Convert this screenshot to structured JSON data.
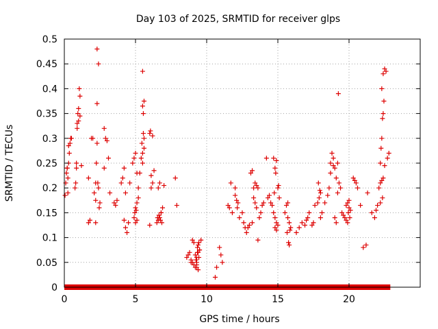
{
  "chart_data": {
    "type": "scatter",
    "title": "Day 103 of 2025, SRMTID for receiver glps",
    "xlabel": "GPS time / hours",
    "ylabel": "SRMTID / TECUs",
    "xlim": [
      0,
      25
    ],
    "ylim": [
      0,
      0.5
    ],
    "xticks": [
      0,
      5,
      10,
      15,
      20
    ],
    "xtick_labels": [
      "0",
      "5",
      "10",
      "15",
      "20"
    ],
    "yticks": [
      0,
      0.05,
      0.1,
      0.15,
      0.2,
      0.25,
      0.3,
      0.35,
      0.4,
      0.45,
      0.5
    ],
    "ytick_labels": [
      "0",
      "0.05",
      "0.1",
      "0.15",
      "0.2",
      "0.25",
      "0.3",
      "0.35",
      "0.4",
      "0.45",
      "0.5"
    ],
    "grid": true,
    "marker": "plus",
    "color": "#dd0000",
    "zero_band": {
      "x_start": 0,
      "x_end": 22.9,
      "y": 0
    },
    "series": [
      {
        "name": "SRMTID",
        "x": [
          0.05,
          0.1,
          0.15,
          0.2,
          0.25,
          0.3,
          0.35,
          0.4,
          0.45,
          0.5,
          0.2,
          0.3,
          0.25,
          0.75,
          0.8,
          0.85,
          0.9,
          0.95,
          1.0,
          1.05,
          1.1,
          1.2,
          0.9,
          1.0,
          1.1,
          0.85,
          1.7,
          1.8,
          1.7,
          1.9,
          2.0,
          2.1,
          2.2,
          2.3,
          2.4,
          2.3,
          2.2,
          2.25,
          2.3,
          2.2,
          2.35,
          2.4,
          2.5,
          2.45,
          2.8,
          2.9,
          3.0,
          3.1,
          2.8,
          3.2,
          3.5,
          3.6,
          3.7,
          4.0,
          4.1,
          4.2,
          4.3,
          4.4,
          4.5,
          4.2,
          4.3,
          4.6,
          4.8,
          4.9,
          5.0,
          5.1,
          5.2,
          5.0,
          5.1,
          5.2,
          4.9,
          5.0,
          5.1,
          5.3,
          4.95,
          5.05,
          5.4,
          5.5,
          5.45,
          5.6,
          5.55,
          5.5,
          5.6,
          5.5,
          5.6,
          5.55,
          5.5,
          6.0,
          6.1,
          6.2,
          6.3,
          6.1,
          6.0,
          6.2,
          6.05,
          6.5,
          6.6,
          6.7,
          6.8,
          6.9,
          7.0,
          6.6,
          6.7,
          6.8,
          6.55,
          6.65,
          6.75,
          6.85,
          7.8,
          7.9,
          8.6,
          8.7,
          8.8,
          8.9,
          9.0,
          9.1,
          9.2,
          9.3,
          9.4,
          9.5,
          9.35,
          9.4,
          9.45,
          9.3,
          9.25,
          9.2,
          9.4,
          9.3,
          9.5,
          9.6,
          9.1,
          9.0,
          8.9,
          9.3,
          9.45,
          9.35,
          10.6,
          10.7,
          10.9,
          11.0,
          11.1,
          11.5,
          11.6,
          11.7,
          12.0,
          12.1,
          12.2,
          12.15,
          12.3,
          12.0,
          11.8,
          12.5,
          12.6,
          12.7,
          12.8,
          12.9,
          13.0,
          13.1,
          13.2,
          13.3,
          13.4,
          13.5,
          13.6,
          13.3,
          13.4,
          13.5,
          13.6,
          13.2,
          13.7,
          13.8,
          13.9,
          14.0,
          14.2,
          14.3,
          14.4,
          14.5,
          14.6,
          14.7,
          14.8,
          14.9,
          15.0,
          14.8,
          14.9,
          14.7,
          14.85,
          14.75,
          15.1,
          15.0,
          15.05,
          14.8,
          14.9,
          15.5,
          15.6,
          15.7,
          15.8,
          15.9,
          15.7,
          15.8,
          15.75,
          15.65,
          15.85,
          16.3,
          16.5,
          16.7,
          16.9,
          17.0,
          17.1,
          17.2,
          17.4,
          17.5,
          17.6,
          17.8,
          17.9,
          18.0,
          17.85,
          17.95,
          18.1,
          18.0,
          18.3,
          18.5,
          18.6,
          18.7,
          18.8,
          18.9,
          19.0,
          19.1,
          19.2,
          19.3,
          19.4,
          18.7,
          18.9,
          19.0,
          19.1,
          19.2,
          19.25,
          19.5,
          19.6,
          19.7,
          19.8,
          19.9,
          20.0,
          20.1,
          19.8,
          19.9,
          20.0,
          19.95,
          20.05,
          20.3,
          20.4,
          20.5,
          20.6,
          20.8,
          21.0,
          21.2,
          21.3,
          21.6,
          21.8,
          21.9,
          22.0,
          22.1,
          22.2,
          22.3,
          22.4,
          22.5,
          22.2,
          22.25,
          22.3,
          22.35,
          22.4,
          22.45,
          22.3,
          22.4,
          22.5,
          22.6,
          22.8,
          22.7,
          22.35,
          22.2
        ],
        "y": [
          0.185,
          0.21,
          0.23,
          0.24,
          0.22,
          0.25,
          0.27,
          0.29,
          0.3,
          0.3,
          0.24,
          0.285,
          0.19,
          0.2,
          0.21,
          0.25,
          0.33,
          0.35,
          0.36,
          0.4,
          0.385,
          0.245,
          0.32,
          0.335,
          0.345,
          0.24,
          0.13,
          0.135,
          0.22,
          0.3,
          0.3,
          0.19,
          0.21,
          0.48,
          0.45,
          0.37,
          0.175,
          0.25,
          0.29,
          0.13,
          0.21,
          0.2,
          0.17,
          0.16,
          0.32,
          0.3,
          0.295,
          0.26,
          0.24,
          0.19,
          0.17,
          0.165,
          0.175,
          0.21,
          0.22,
          0.24,
          0.12,
          0.11,
          0.13,
          0.135,
          0.19,
          0.21,
          0.25,
          0.26,
          0.27,
          0.23,
          0.2,
          0.16,
          0.17,
          0.18,
          0.14,
          0.13,
          0.135,
          0.23,
          0.15,
          0.155,
          0.26,
          0.27,
          0.29,
          0.3,
          0.35,
          0.365,
          0.375,
          0.435,
          0.28,
          0.31,
          0.25,
          0.125,
          0.2,
          0.21,
          0.235,
          0.225,
          0.31,
          0.305,
          0.315,
          0.13,
          0.135,
          0.14,
          0.15,
          0.16,
          0.205,
          0.2,
          0.21,
          0.15,
          0.14,
          0.145,
          0.135,
          0.13,
          0.22,
          0.165,
          0.06,
          0.065,
          0.07,
          0.055,
          0.05,
          0.045,
          0.04,
          0.06,
          0.07,
          0.075,
          0.08,
          0.085,
          0.09,
          0.05,
          0.055,
          0.065,
          0.035,
          0.045,
          0.075,
          0.095,
          0.09,
          0.095,
          0.05,
          0.04,
          0.06,
          0.07,
          0.02,
          0.04,
          0.08,
          0.065,
          0.05,
          0.165,
          0.16,
          0.21,
          0.185,
          0.175,
          0.17,
          0.16,
          0.14,
          0.2,
          0.15,
          0.15,
          0.13,
          0.12,
          0.11,
          0.12,
          0.125,
          0.23,
          0.235,
          0.2,
          0.21,
          0.205,
          0.2,
          0.18,
          0.17,
          0.16,
          0.095,
          0.13,
          0.14,
          0.15,
          0.165,
          0.17,
          0.26,
          0.18,
          0.185,
          0.17,
          0.165,
          0.15,
          0.14,
          0.13,
          0.125,
          0.24,
          0.255,
          0.26,
          0.23,
          0.19,
          0.18,
          0.2,
          0.205,
          0.12,
          0.115,
          0.15,
          0.165,
          0.17,
          0.13,
          0.12,
          0.14,
          0.085,
          0.09,
          0.11,
          0.115,
          0.11,
          0.12,
          0.13,
          0.125,
          0.135,
          0.14,
          0.15,
          0.125,
          0.13,
          0.165,
          0.17,
          0.18,
          0.19,
          0.21,
          0.195,
          0.15,
          0.14,
          0.17,
          0.185,
          0.2,
          0.25,
          0.27,
          0.26,
          0.24,
          0.22,
          0.25,
          0.21,
          0.2,
          0.23,
          0.245,
          0.14,
          0.13,
          0.19,
          0.39,
          0.15,
          0.145,
          0.14,
          0.135,
          0.13,
          0.16,
          0.155,
          0.165,
          0.17,
          0.175,
          0.15,
          0.14,
          0.22,
          0.215,
          0.21,
          0.2,
          0.165,
          0.08,
          0.085,
          0.19,
          0.15,
          0.14,
          0.155,
          0.165,
          0.2,
          0.21,
          0.215,
          0.22,
          0.245,
          0.25,
          0.28,
          0.3,
          0.34,
          0.35,
          0.375,
          0.4,
          0.43,
          0.44,
          0.435,
          0.27,
          0.26,
          0.18,
          0.17
        ]
      }
    ]
  }
}
